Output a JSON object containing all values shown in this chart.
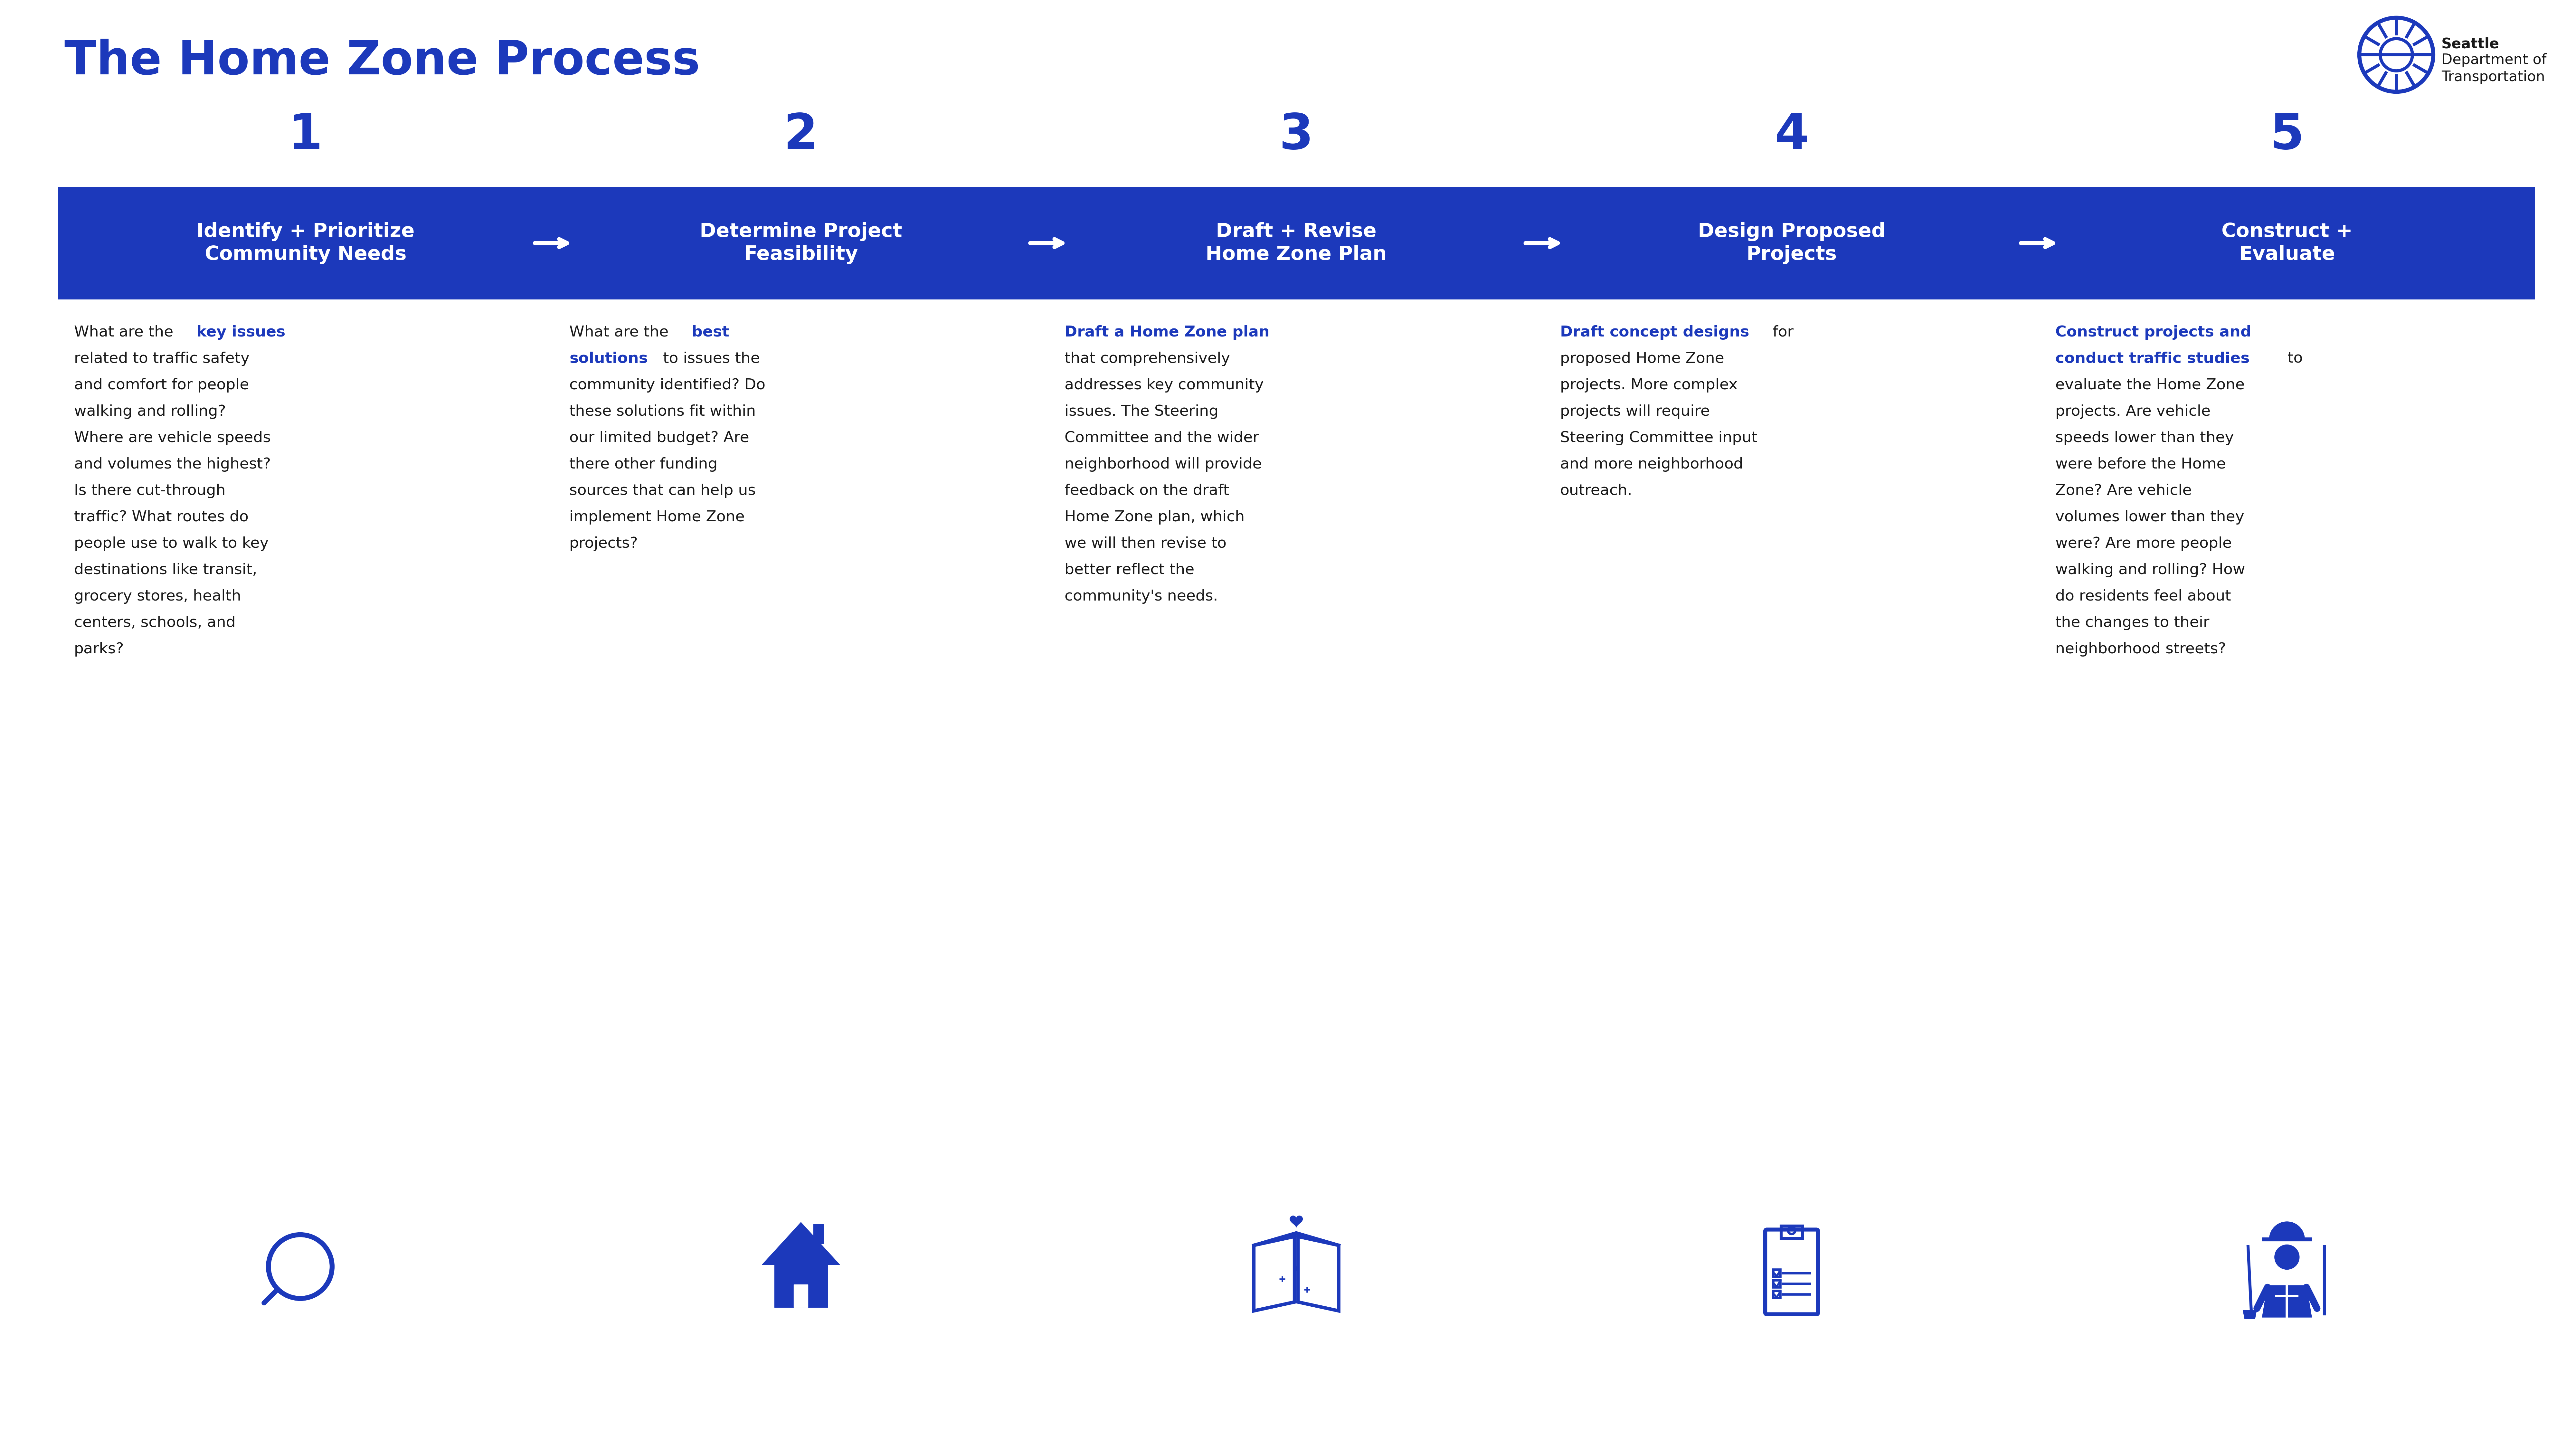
{
  "title": "The Home Zone Process",
  "title_color": "#1c39bb",
  "title_fontsize": 105,
  "bg_color": "#ffffff",
  "header_bar_color": "#1c39bb",
  "step_numbers": [
    "1",
    "2",
    "3",
    "4",
    "5"
  ],
  "step_titles": [
    "Identify + Prioritize\nCommunity Needs",
    "Determine Project\nFeasibility",
    "Draft + Revise\nHome Zone Plan",
    "Design Proposed\nProjects",
    "Construct +\nEvaluate"
  ],
  "step_body_texts": [
    [
      [
        "What are the ",
        false
      ],
      [
        "key issues",
        true
      ],
      [
        "\nrelated to traffic safety\nand comfort for people\nwalking and rolling?\nWhere are vehicle speeds\nand volumes the highest?\nIs there cut-through\ntraffic? What routes do\npeople use to walk to key\ndestinations like transit,\ngrocery stores, health\ncenters, schools, and\nparks?",
        false
      ]
    ],
    [
      [
        "What are the ",
        false
      ],
      [
        "best\nsolutions",
        true
      ],
      [
        " to issues the\ncommunity identified? Do\nthese solutions fit within\nour limited budget? Are\nthere other funding\nsources that can help us\nimplement Home Zone\nprojects?",
        false
      ]
    ],
    [
      [
        "Draft a Home Zone plan",
        true
      ],
      [
        "\nthat comprehensively\naddresses key community\nissues. The Steering\nCommittee and the wider\nneighborhood will provide\nfeedback on the draft\nHome Zone plan, which\nwe will then revise to\nbetter reflect the\ncommunity's needs.",
        false
      ]
    ],
    [
      [
        "Draft concept designs",
        true
      ],
      [
        " for\nproposed Home Zone\nprojects. More complex\nprojects will require\nSteering Committee input\nand more neighborhood\noutreach.",
        false
      ]
    ],
    [
      [
        "Construct projects and\nconduct traffic studies",
        true
      ],
      [
        " to\nevaluate the Home Zone\nprojects. Are vehicle\nspeeds lower than they\nwere before the Home\nZone? Are vehicle\nvolumes lower than they\nwere? Are more people\nwalking and rolling? How\ndo residents feel about\nthe changes to their\nneighborhood streets?",
        false
      ]
    ]
  ],
  "text_color": "#1a1a1a",
  "bold_color": "#1c39bb",
  "icon_color": "#1c39bb",
  "arrow_color": "#ffffff",
  "number_color": "#1c39bb",
  "logo_text_bold": "Seattle",
  "logo_text_reg": "Department of\nTransportation"
}
